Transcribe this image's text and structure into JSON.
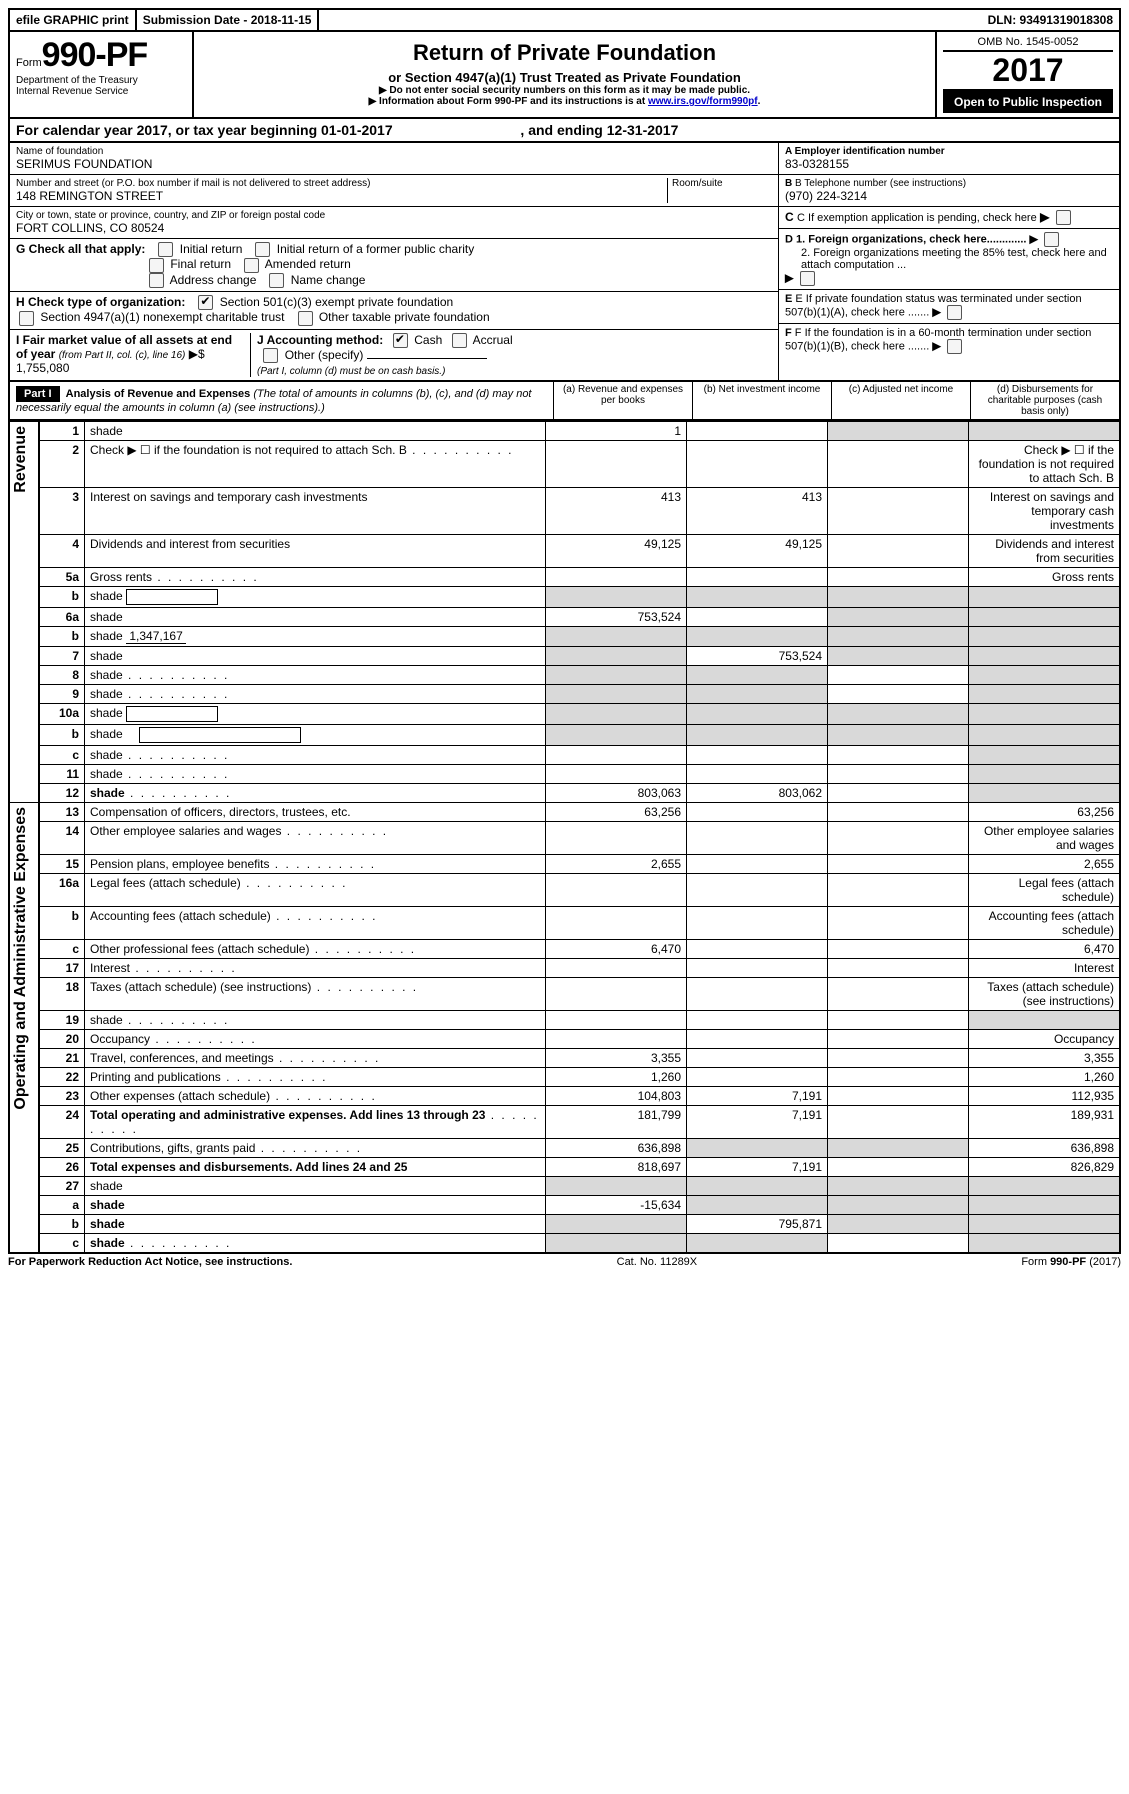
{
  "topbar": {
    "efile": "efile GRAPHIC print",
    "submission_label": "Submission Date - 2018-11-15",
    "dln": "DLN: 93491319018308"
  },
  "header": {
    "form_label": "Form",
    "form_no": "990-PF",
    "dept": "Department of the Treasury",
    "irs": "Internal Revenue Service",
    "title": "Return of Private Foundation",
    "subtitle": "or Section 4947(a)(1) Trust Treated as Private Foundation",
    "note1": "▶ Do not enter social security numbers on this form as it may be made public.",
    "note2_pre": "▶ Information about Form 990-PF and its instructions is at ",
    "note2_link": "www.irs.gov/form990pf",
    "omb": "OMB No. 1545-0052",
    "year": "2017",
    "open": "Open to Public Inspection"
  },
  "calendar": {
    "pre": "For calendar year 2017, or tax year beginning ",
    "begin": "01-01-2017",
    "mid": " , and ending ",
    "end": "12-31-2017"
  },
  "entity": {
    "name_label": "Name of foundation",
    "name": "SERIMUS FOUNDATION",
    "addr_label": "Number and street (or P.O. box number if mail is not delivered to street address)",
    "room_label": "Room/suite",
    "addr": "148 REMINGTON STREET",
    "city_label": "City or town, state or province, country, and ZIP or foreign postal code",
    "city": "FORT COLLINS, CO  80524",
    "ein_label": "A Employer identification number",
    "ein": "83-0328155",
    "phone_label": "B Telephone number (see instructions)",
    "phone": "(970) 224-3214",
    "c_label": "C If exemption application is pending, check here",
    "d1_label": "D 1. Foreign organizations, check here.............",
    "d2_label": "2. Foreign organizations meeting the 85% test, check here and attach computation ...",
    "e_label": "E  If private foundation status was terminated under section 507(b)(1)(A), check here .......",
    "f_label": "F  If the foundation is in a 60-month termination under section 507(b)(1)(B), check here .......",
    "g_label": "G Check all that apply:",
    "g_opts": [
      "Initial return",
      "Initial return of a former public charity",
      "Final return",
      "Amended return",
      "Address change",
      "Name change"
    ],
    "h_label": "H Check type of organization:",
    "h_opt1": "Section 501(c)(3) exempt private foundation",
    "h_opt2": "Section 4947(a)(1) nonexempt charitable trust",
    "h_opt3": "Other taxable private foundation",
    "i_label": "I Fair market value of all assets at end of year ",
    "i_from": "(from Part II, col. (c), line 16)",
    "i_val": "▶$  1,755,080",
    "j_label": "J Accounting method:",
    "j_cash": "Cash",
    "j_accrual": "Accrual",
    "j_other": "Other (specify)",
    "j_note": "(Part I, column (d) must be on cash basis.)"
  },
  "part1": {
    "badge": "Part I",
    "title": "Analysis of Revenue and Expenses ",
    "title_note": "(The total of amounts in columns (b), (c), and (d) may not necessarily equal the amounts in column (a) (see instructions).)",
    "col_a": "(a)   Revenue and expenses per books",
    "col_b": "(b)  Net investment income",
    "col_c": "(c)  Adjusted net income",
    "col_d": "(d)  Disbursements for charitable purposes (cash basis only)"
  },
  "section_labels": {
    "revenue": "Revenue",
    "opex": "Operating and Administrative Expenses"
  },
  "rows": {
    "r1": {
      "n": "1",
      "d": "shade",
      "a": "1",
      "b": "",
      "c": "shade"
    },
    "r2": {
      "n": "2",
      "d": "Check ▶ ☐ if the foundation is not required to attach Sch. B",
      "dots": true
    },
    "r3": {
      "n": "3",
      "d": "Interest on savings and temporary cash investments",
      "a": "413",
      "b": "413"
    },
    "r4": {
      "n": "4",
      "d": "Dividends and interest from securities",
      "a": "49,125",
      "b": "49,125"
    },
    "r5a": {
      "n": "5a",
      "d": "Gross rents",
      "dots": true
    },
    "r5b": {
      "n": "b",
      "d": "shade",
      "box": true,
      "a": "shade",
      "b": "shade",
      "c": "shade"
    },
    "r6a": {
      "n": "6a",
      "d": "shade",
      "a": "753,524",
      "c": "shade"
    },
    "r6b": {
      "n": "b",
      "d": "shade",
      "ul": "1,347,167",
      "a": "shade",
      "b": "shade",
      "c": "shade"
    },
    "r7": {
      "n": "7",
      "d": "shade",
      "a": "shade",
      "b": "753,524",
      "c": "shade"
    },
    "r8": {
      "n": "8",
      "d": "shade",
      "dots": true,
      "a": "shade",
      "b": "shade"
    },
    "r9": {
      "n": "9",
      "d": "shade",
      "dots": true,
      "a": "shade",
      "b": "shade"
    },
    "r10a": {
      "n": "10a",
      "d": "shade",
      "box": true,
      "a": "shade",
      "b": "shade",
      "c": "shade"
    },
    "r10b": {
      "n": "b",
      "d": "shade",
      "boxw": true,
      "a": "shade",
      "b": "shade",
      "c": "shade"
    },
    "r10c": {
      "n": "c",
      "d": "shade",
      "dots": true
    },
    "r11": {
      "n": "11",
      "d": "shade",
      "dots": true
    },
    "r12": {
      "n": "12",
      "d": "shade",
      "bold": true,
      "dots": true,
      "a": "803,063",
      "b": "803,062"
    },
    "r13": {
      "n": "13",
      "d": "Compensation of officers, directors, trustees, etc.",
      "a": "63,256",
      "dd": "63,256"
    },
    "r14": {
      "n": "14",
      "d": "Other employee salaries and wages",
      "dots": true
    },
    "r15": {
      "n": "15",
      "d": "Pension plans, employee benefits",
      "dots": true,
      "a": "2,655",
      "dd": "2,655"
    },
    "r16a": {
      "n": "16a",
      "d": "Legal fees (attach schedule)",
      "dots": true
    },
    "r16b": {
      "n": "b",
      "d": "Accounting fees (attach schedule)",
      "dots": true
    },
    "r16c": {
      "n": "c",
      "d": "Other professional fees (attach schedule)",
      "dots": true,
      "a": "6,470",
      "dd": "6,470"
    },
    "r17": {
      "n": "17",
      "d": "Interest",
      "dots": true
    },
    "r18": {
      "n": "18",
      "d": "Taxes (attach schedule) (see instructions)",
      "dots": true
    },
    "r19": {
      "n": "19",
      "d": "shade",
      "dots": true
    },
    "r20": {
      "n": "20",
      "d": "Occupancy",
      "dots": true
    },
    "r21": {
      "n": "21",
      "d": "Travel, conferences, and meetings",
      "dots": true,
      "a": "3,355",
      "dd": "3,355"
    },
    "r22": {
      "n": "22",
      "d": "Printing and publications",
      "dots": true,
      "a": "1,260",
      "dd": "1,260"
    },
    "r23": {
      "n": "23",
      "d": "Other expenses (attach schedule)",
      "dots": true,
      "a": "104,803",
      "b": "7,191",
      "dd": "112,935"
    },
    "r24": {
      "n": "24",
      "d": "Total operating and administrative expenses. Add lines 13 through 23",
      "bold": true,
      "dots": true,
      "a": "181,799",
      "b": "7,191",
      "dd": "189,931"
    },
    "r25": {
      "n": "25",
      "d": "Contributions, gifts, grants paid",
      "dots": true,
      "a": "636,898",
      "b": "shade",
      "c": "shade",
      "dd": "636,898"
    },
    "r26": {
      "n": "26",
      "d": "Total expenses and disbursements. Add lines 24 and 25",
      "bold": true,
      "a": "818,697",
      "b": "7,191",
      "dd": "826,829"
    },
    "r27": {
      "n": "27",
      "d": "shade",
      "a": "shade",
      "b": "shade",
      "c": "shade"
    },
    "r27a": {
      "n": "a",
      "d": "shade",
      "bold": true,
      "a": "-15,634",
      "b": "shade",
      "c": "shade"
    },
    "r27b": {
      "n": "b",
      "d": "shade",
      "bold": true,
      "a": "shade",
      "b": "795,871",
      "c": "shade"
    },
    "r27c": {
      "n": "c",
      "d": "shade",
      "bold": true,
      "dots": true,
      "a": "shade",
      "b": "shade"
    }
  },
  "footer": {
    "left": "For Paperwork Reduction Act Notice, see instructions.",
    "mid": "Cat. No. 11289X",
    "right": "Form 990-PF (2017)"
  }
}
